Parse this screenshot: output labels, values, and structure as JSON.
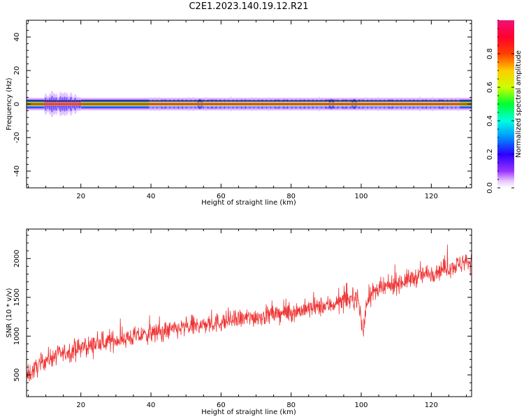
{
  "title": "C2E1.2023.140.19.12.R21",
  "colors": {
    "snr_line": "#ee3333",
    "background": "#ffffff",
    "axis": "#000000"
  },
  "chart_data": [
    {
      "type": "heatmap",
      "xlabel": "Height of straight line (km)",
      "ylabel": "Frequency (Hz)",
      "xlim": [
        4.5,
        131.5
      ],
      "ylim": [
        -50,
        50
      ],
      "xticks": [
        20,
        40,
        60,
        80,
        100,
        120
      ],
      "yticks": [
        -40,
        -20,
        0,
        20,
        40
      ],
      "colorbar": {
        "label": "Normalized spectral amplitude",
        "range": [
          0.0,
          1.0
        ],
        "ticks": [
          0.0,
          0.2,
          0.4,
          0.6,
          0.8
        ],
        "colormap": "rainbow"
      },
      "description_points": {
        "center_frequency": 0,
        "band_halfwidth": 2,
        "strong_spread_x": [
          10,
          20
        ],
        "secondary_features_x": [
          54,
          91.5,
          98
        ]
      }
    },
    {
      "type": "line",
      "xlabel": "Height of straight line (km)",
      "ylabel": "SNR (10 * v/v)",
      "xlim": [
        4.5,
        131.5
      ],
      "ylim": [
        220,
        2380
      ],
      "xticks": [
        20,
        40,
        60,
        80,
        100,
        120
      ],
      "yticks": [
        500,
        1000,
        1500,
        2000
      ],
      "series": [
        {
          "trend_x": [
            4.5,
            10,
            20,
            30,
            40,
            50,
            60,
            70,
            80,
            90,
            99,
            100.5,
            102,
            110,
            120,
            131.5
          ],
          "trend_y": [
            480,
            700,
            850,
            950,
            1030,
            1110,
            1180,
            1250,
            1310,
            1390,
            1500,
            1050,
            1530,
            1680,
            1820,
            1970
          ],
          "noise_amplitude": 140
        }
      ]
    }
  ]
}
